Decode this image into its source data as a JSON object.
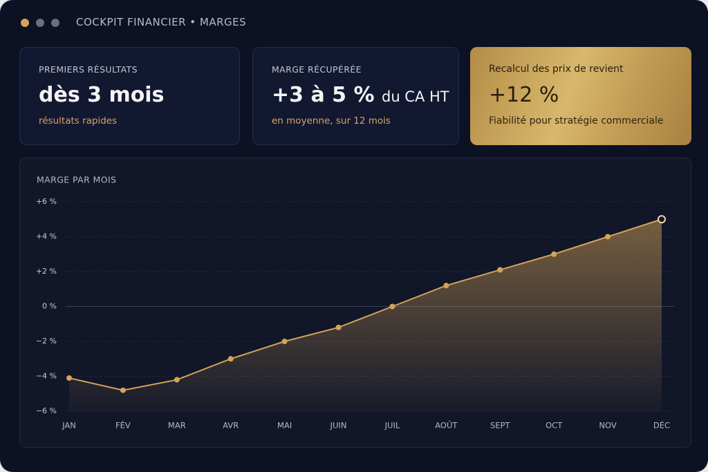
{
  "window": {
    "title": "COCKPIT FINANCIER • MARGES"
  },
  "cards": [
    {
      "label": "PREMIERS RÉSULTATS",
      "value": "dès 3 mois",
      "note": "résultats rapides"
    },
    {
      "label": "MARGE RÉCUPÉRÉE",
      "value": "+3 à 5 %",
      "suffix": "du CA HT",
      "note": "en moyenne, sur 12 mois"
    },
    {
      "label": "Recalcul des prix de revient",
      "value": "+12 %",
      "note": "Fiabilité pour stratégie commerciale"
    }
  ],
  "chart_data": {
    "type": "area",
    "title": "MARGE PAR MOIS",
    "categories": [
      "JAN",
      "FÉV",
      "MAR",
      "AVR",
      "MAI",
      "JUIN",
      "JUIL",
      "AOÛT",
      "SEPT",
      "OCT",
      "NOV",
      "DÉC"
    ],
    "values": [
      -4.1,
      -4.8,
      -4.2,
      -3.0,
      -2.0,
      -1.2,
      0,
      1.2,
      2.1,
      3.0,
      4.0,
      5.0
    ],
    "color": "#d4a45a",
    "ylim": [
      -6,
      6
    ],
    "yticks": [
      {
        "value": 6,
        "label": "+6 %"
      },
      {
        "value": 4,
        "label": "+4 %"
      },
      {
        "value": 2,
        "label": "+2 %"
      },
      {
        "value": 0,
        "label": "0 %"
      },
      {
        "value": -2,
        "label": "−2 %"
      },
      {
        "value": -4,
        "label": "−4 %"
      },
      {
        "value": -6,
        "label": "−6 %"
      }
    ],
    "grid": true
  }
}
